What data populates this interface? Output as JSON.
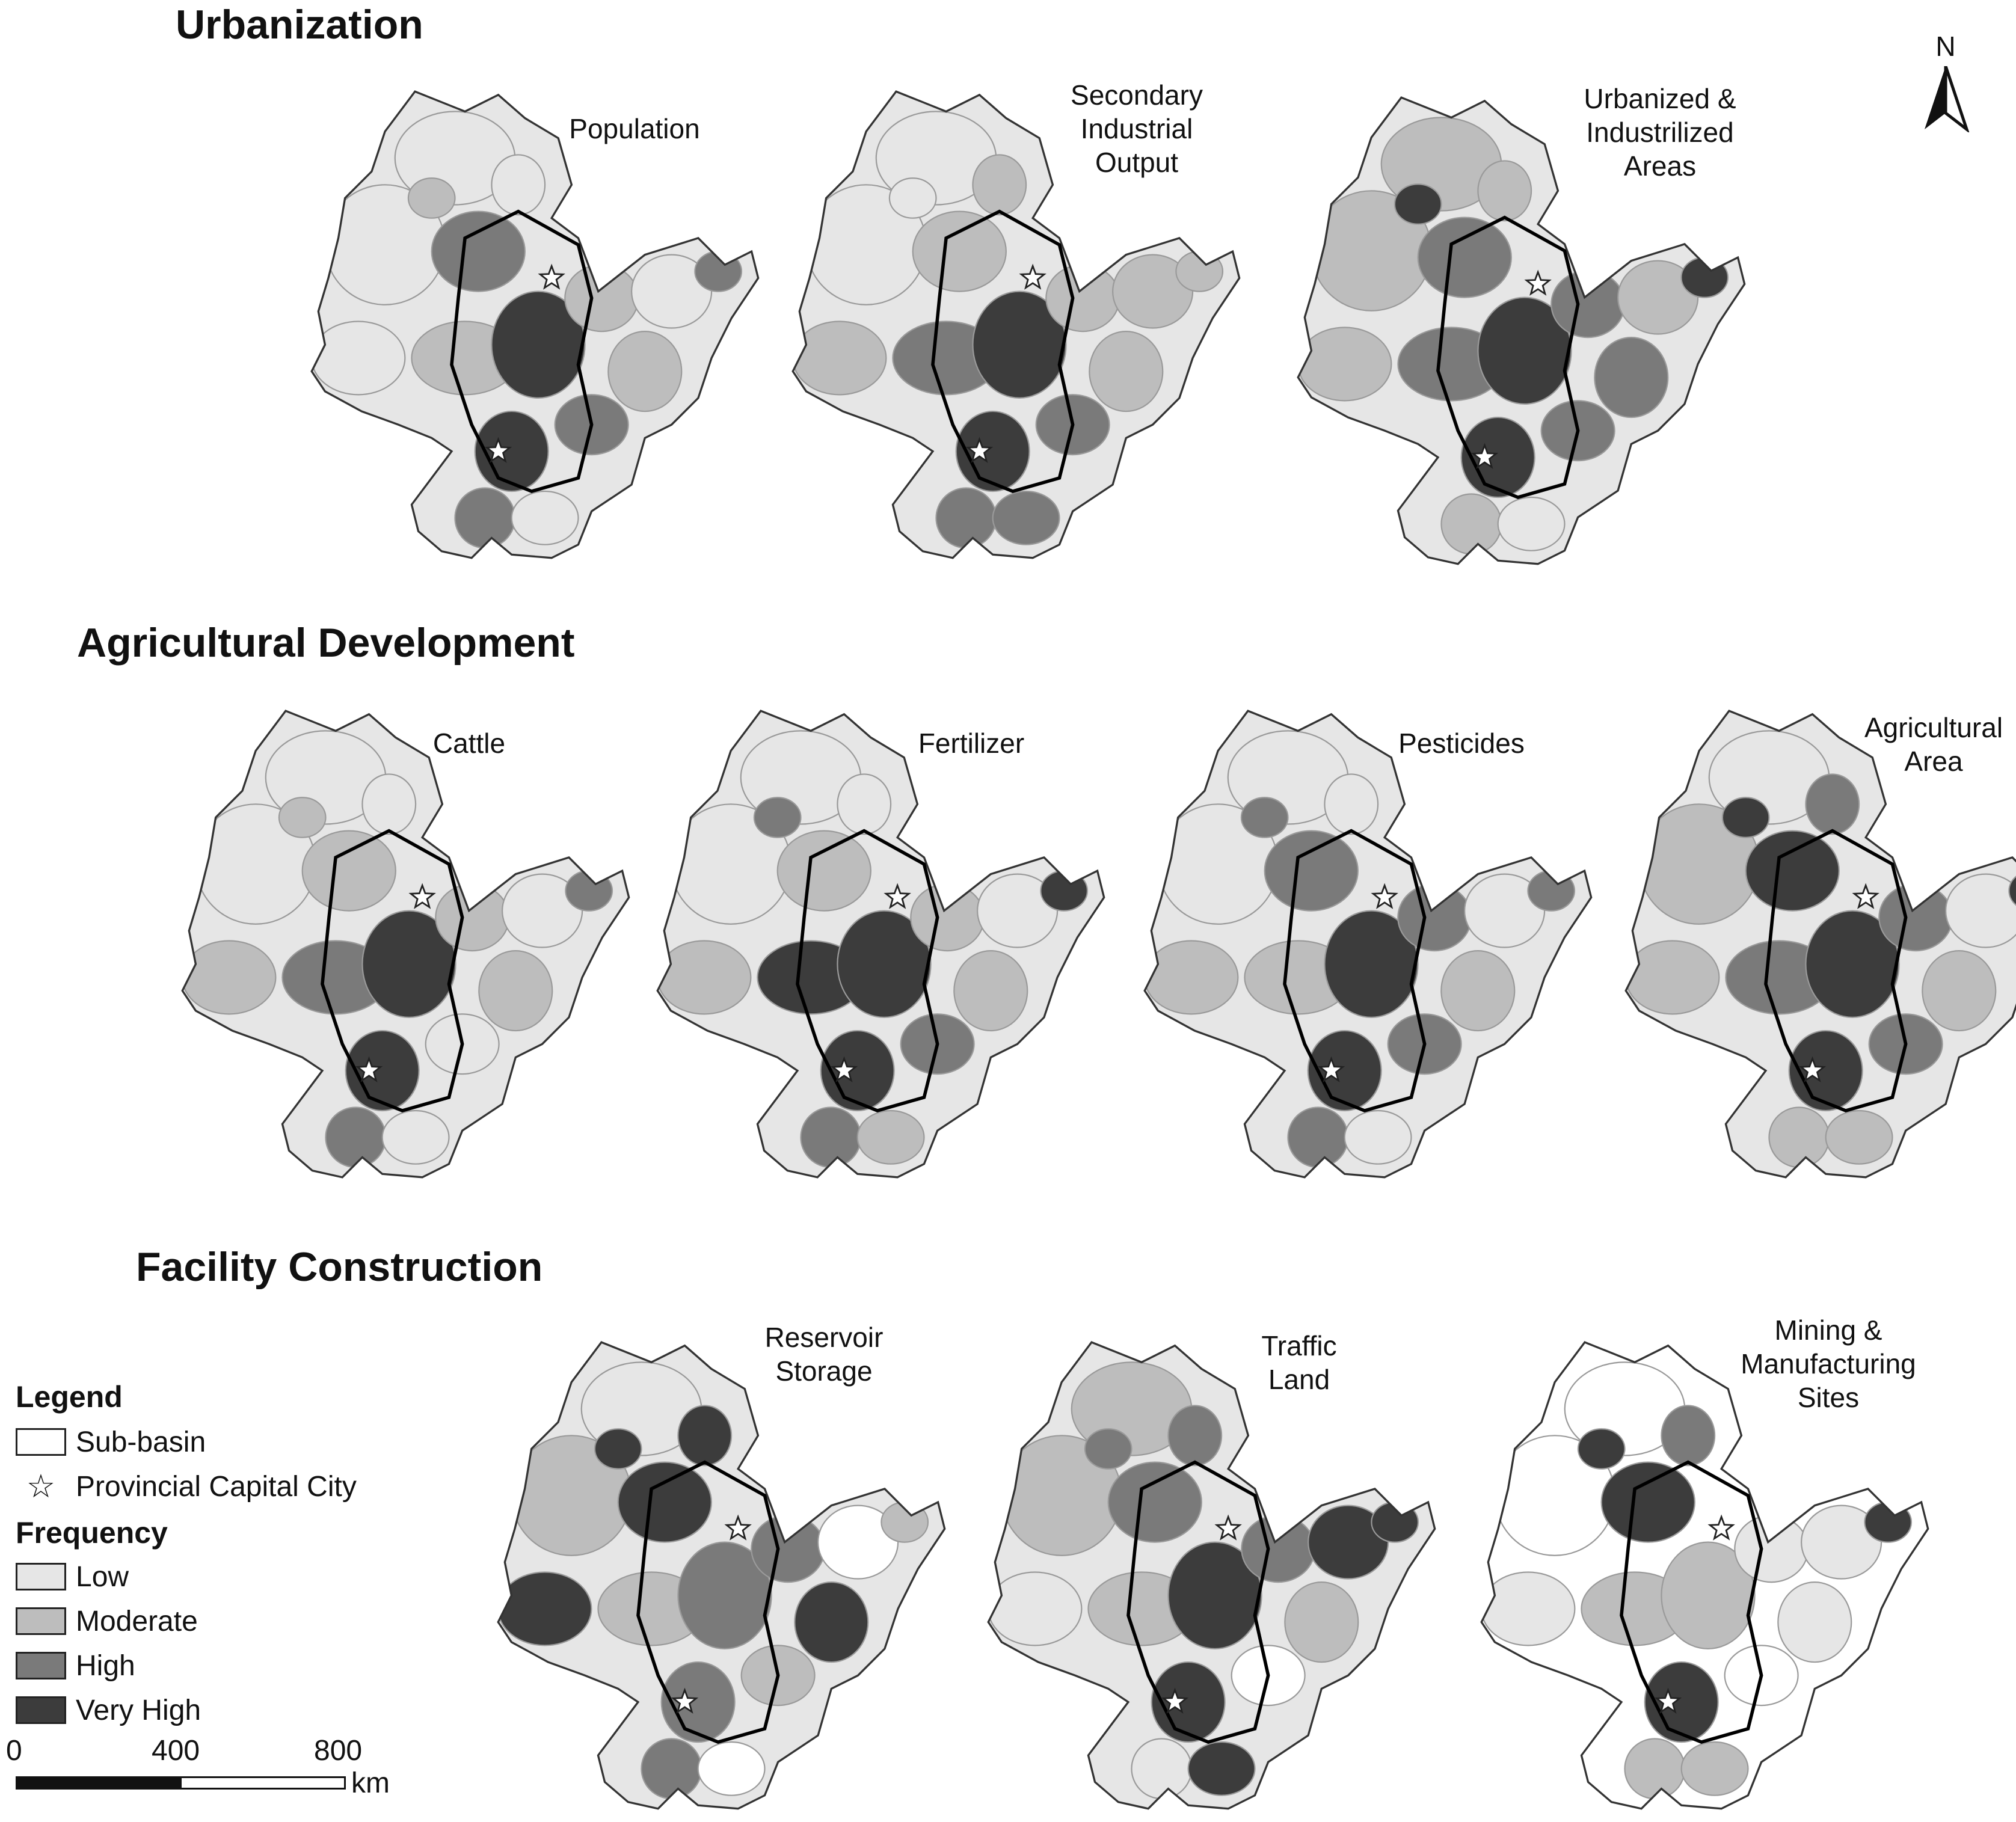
{
  "sections": {
    "urbanization": "Urbanization",
    "agricultural": "Agricultural Development",
    "facility": "Facility Construction"
  },
  "maps": {
    "population": [
      "Population"
    ],
    "secondary_industrial_output": [
      "Secondary",
      "Industrial",
      "Output"
    ],
    "urbanized_areas": [
      "Urbanized &",
      "Industrilized",
      "Areas"
    ],
    "cattle": [
      "Cattle"
    ],
    "fertilizer": [
      "Fertilizer"
    ],
    "pesticides": [
      "Pesticides"
    ],
    "agricultural_area": [
      "Agricultural",
      "Area"
    ],
    "reservoir_storage": [
      "Reservoir",
      "Storage"
    ],
    "traffic_land": [
      "Traffic",
      "Land"
    ],
    "mining_sites": [
      "Mining &",
      "Manufacturing",
      "Sites"
    ]
  },
  "north_arrow": "N",
  "legend": {
    "title": "Legend",
    "sub_basin": "Sub-basin",
    "capital": "Provincial Capital City",
    "frequency_title": "Frequency",
    "classes": [
      {
        "label": "Low",
        "color": "#e6e6e6"
      },
      {
        "label": "Moderate",
        "color": "#bdbdbd"
      },
      {
        "label": "High",
        "color": "#7a7a7a"
      },
      {
        "label": "Very High",
        "color": "#3c3c3c"
      }
    ],
    "no_data_color": "#ffffff"
  },
  "scale_bar": {
    "ticks": [
      "0",
      "400",
      "800"
    ],
    "unit": "km"
  }
}
